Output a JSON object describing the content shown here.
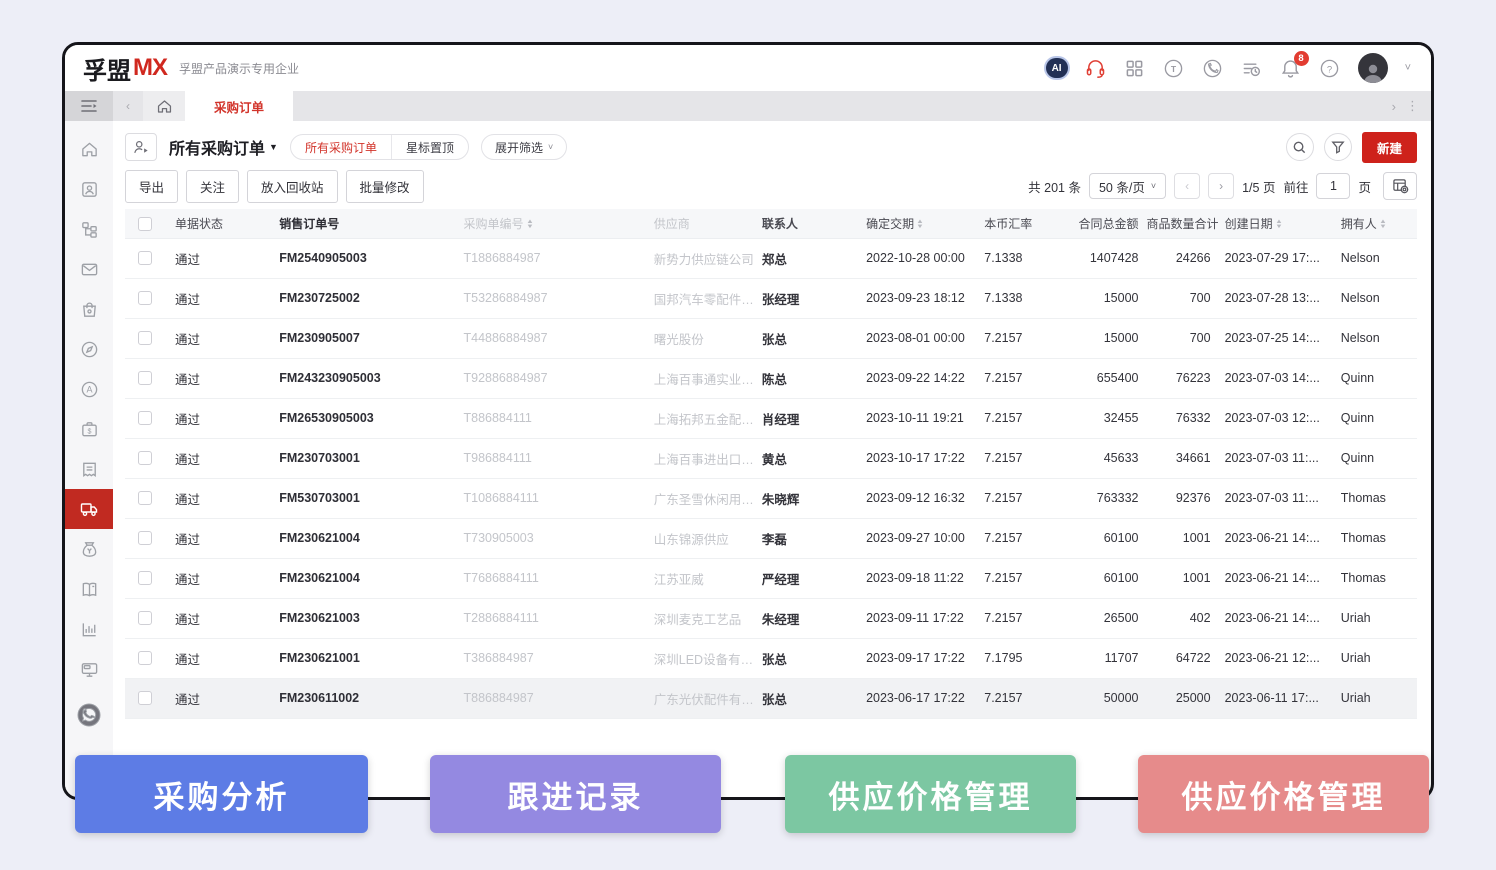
{
  "brand": {
    "logo_primary": "孚盟",
    "logo_accent": "MX",
    "company_name": "孚盟产品演示专用企业"
  },
  "topbar": {
    "ai_label": "AI",
    "bell_badge": "8",
    "message_icon_letter": "T",
    "help_glyph": "?"
  },
  "tabbar": {
    "active_tab": "采购订单"
  },
  "view_toolbar": {
    "title": "所有采购订单",
    "segments": [
      "所有采购订单",
      "星标置顶"
    ],
    "filter_toggle": "展开筛选",
    "create_button": "新建"
  },
  "actions_toolbar": {
    "buttons": [
      "导出",
      "关注",
      "放入回收站",
      "批量修改"
    ],
    "total_text": "共 201 条",
    "page_size": "50 条/页",
    "page_indicator": "1/5 页",
    "goto_label": "前往",
    "goto_value": "1",
    "goto_unit": "页"
  },
  "table": {
    "columns": [
      {
        "key": "status",
        "label": "单据状态",
        "sortable": false
      },
      {
        "key": "sales_no",
        "label": "销售订单号",
        "sortable": false
      },
      {
        "key": "po_no",
        "label": "采购单编号",
        "sortable": true
      },
      {
        "key": "supplier",
        "label": "供应商",
        "sortable": false
      },
      {
        "key": "contact",
        "label": "联系人",
        "sortable": false
      },
      {
        "key": "delivery",
        "label": "确定交期",
        "sortable": true
      },
      {
        "key": "rate",
        "label": "本币汇率",
        "sortable": false
      },
      {
        "key": "amount",
        "label": "合同总金额",
        "sortable": false
      },
      {
        "key": "qty",
        "label": "商品数量合计",
        "sortable": false
      },
      {
        "key": "created",
        "label": "创建日期",
        "sortable": true
      },
      {
        "key": "owner",
        "label": "拥有人",
        "sortable": true
      }
    ],
    "rows": [
      {
        "status": "通过",
        "sales_no": "FM2540905003",
        "po_no": "T1886884987",
        "supplier": "新势力供应链公司",
        "contact": "郑总",
        "delivery": "2022-10-28 00:00",
        "rate": "7.1338",
        "amount": "1407428",
        "qty": "24266",
        "created": "2023-07-29 17:...",
        "owner": "Nelson",
        "highlight": false
      },
      {
        "status": "通过",
        "sales_no": "FM230725002",
        "po_no": "T53286884987",
        "supplier": "国邦汽车零配件有...",
        "contact": "张经理",
        "delivery": "2023-09-23 18:12",
        "rate": "7.1338",
        "amount": "15000",
        "qty": "700",
        "created": "2023-07-28 13:...",
        "owner": "Nelson",
        "highlight": false
      },
      {
        "status": "通过",
        "sales_no": "FM230905007",
        "po_no": "T44886884987",
        "supplier": "曙光股份",
        "contact": "张总",
        "delivery": "2023-08-01 00:00",
        "rate": "7.2157",
        "amount": "15000",
        "qty": "700",
        "created": "2023-07-25 14:...",
        "owner": "Nelson",
        "highlight": false
      },
      {
        "status": "通过",
        "sales_no": "FM243230905003",
        "po_no": "T92886884987",
        "supplier": "上海百事通实业有...",
        "contact": "陈总",
        "delivery": "2023-09-22 14:22",
        "rate": "7.2157",
        "amount": "655400",
        "qty": "76223",
        "created": "2023-07-03 14:...",
        "owner": "Quinn",
        "highlight": false
      },
      {
        "status": "通过",
        "sales_no": "FM26530905003",
        "po_no": "T886884111",
        "supplier": "上海拓邦五金配件...",
        "contact": "肖经理",
        "delivery": "2023-10-11 19:21",
        "rate": "7.2157",
        "amount": "32455",
        "qty": "76332",
        "created": "2023-07-03 12:...",
        "owner": "Quinn",
        "highlight": false
      },
      {
        "status": "通过",
        "sales_no": "FM230703001",
        "po_no": "T986884111",
        "supplier": "上海百事进出口有...",
        "contact": "黄总",
        "delivery": "2023-10-17 17:22",
        "rate": "7.2157",
        "amount": "45633",
        "qty": "34661",
        "created": "2023-07-03 11:...",
        "owner": "Quinn",
        "highlight": false
      },
      {
        "status": "通过",
        "sales_no": "FM530703001",
        "po_no": "T1086884111",
        "supplier": "广东圣雪休闲用品...",
        "contact": "朱晓辉",
        "delivery": "2023-09-12 16:32",
        "rate": "7.2157",
        "amount": "763332",
        "qty": "92376",
        "created": "2023-07-03 11:...",
        "owner": "Thomas",
        "highlight": false
      },
      {
        "status": "通过",
        "sales_no": "FM230621004",
        "po_no": "T730905003",
        "supplier": "山东锦源供应",
        "contact": "李磊",
        "delivery": "2023-09-27 10:00",
        "rate": "7.2157",
        "amount": "60100",
        "qty": "1001",
        "created": "2023-06-21 14:...",
        "owner": "Thomas",
        "highlight": false
      },
      {
        "status": "通过",
        "sales_no": "FM230621004",
        "po_no": "T7686884111",
        "supplier": "江苏亚威",
        "contact": "严经理",
        "delivery": "2023-09-18 11:22",
        "rate": "7.2157",
        "amount": "60100",
        "qty": "1001",
        "created": "2023-06-21 14:...",
        "owner": "Thomas",
        "highlight": false
      },
      {
        "status": "通过",
        "sales_no": "FM230621003",
        "po_no": "T2886884111",
        "supplier": "深圳麦克工艺品",
        "contact": "朱经理",
        "delivery": "2023-09-11 17:22",
        "rate": "7.2157",
        "amount": "26500",
        "qty": "402",
        "created": "2023-06-21 14:...",
        "owner": "Uriah",
        "highlight": false
      },
      {
        "status": "通过",
        "sales_no": "FM230621001",
        "po_no": "T386884987",
        "supplier": "深圳LED设备有限...",
        "contact": "张总",
        "delivery": "2023-09-17 17:22",
        "rate": "7.1795",
        "amount": "11707",
        "qty": "64722",
        "created": "2023-06-21 12:...",
        "owner": "Uriah",
        "highlight": false
      },
      {
        "status": "通过",
        "sales_no": "FM230611002",
        "po_no": "T886884987",
        "supplier": "广东光伏配件有限...",
        "contact": "张总",
        "delivery": "2023-06-17 17:22",
        "rate": "7.2157",
        "amount": "50000",
        "qty": "25000",
        "created": "2023-06-11 17:...",
        "owner": "Uriah",
        "highlight": true
      }
    ]
  },
  "bottom_buttons": [
    {
      "label": "采购分析",
      "color": "#5d7ce5"
    },
    {
      "label": "跟进记录",
      "color": "#9489e1"
    },
    {
      "label": "供应价格管理",
      "color": "#7cc7a2"
    },
    {
      "label": "供应价格管理",
      "color": "#e68b8b"
    }
  ]
}
